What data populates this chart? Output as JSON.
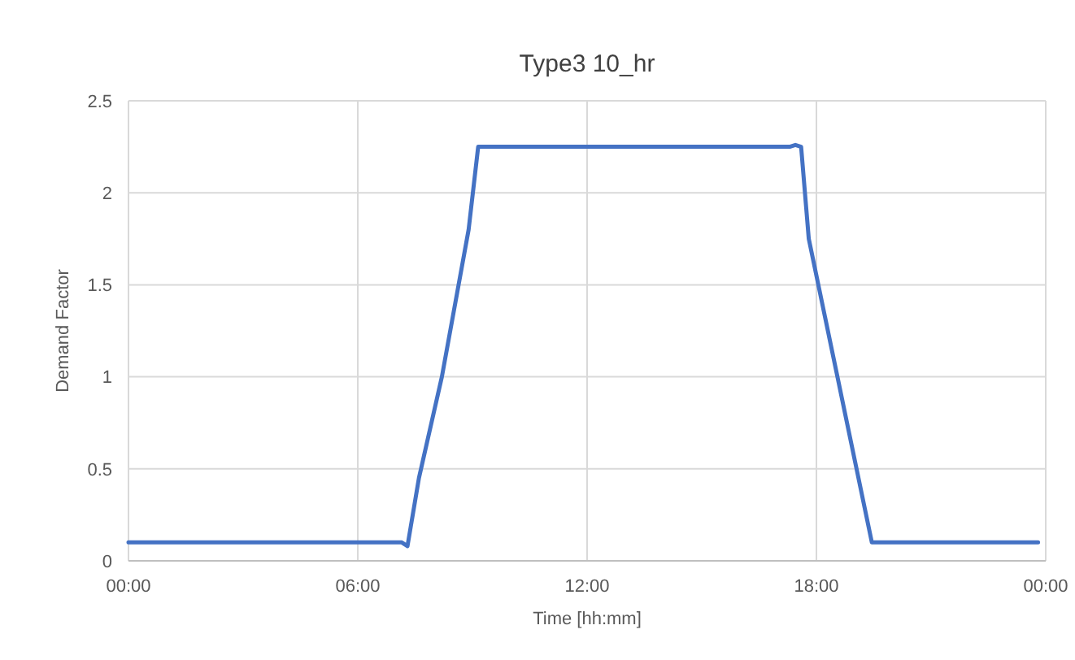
{
  "chart_data": {
    "type": "line",
    "title": "Type3 10_hr",
    "xlabel": "Time [hh:mm]",
    "ylabel": "Demand Factor",
    "x": [
      0,
      7.15,
      7.3,
      7.6,
      8.2,
      8.9,
      9.15,
      9.3,
      17.3,
      17.45,
      17.6,
      17.8,
      18.55,
      19.45,
      19.6,
      23.8
    ],
    "series": [
      {
        "color": "#4472c4",
        "values": [
          0.1,
          0.1,
          0.08,
          0.45,
          1.0,
          1.8,
          2.25,
          2.25,
          2.25,
          2.26,
          2.25,
          1.75,
          1.0,
          0.1,
          0.1,
          0.1
        ]
      }
    ],
    "xlim": [
      0,
      24
    ],
    "xticks": [
      {
        "value": 0,
        "label": "00:00"
      },
      {
        "value": 6,
        "label": "06:00"
      },
      {
        "value": 12,
        "label": "12:00"
      },
      {
        "value": 18,
        "label": "18:00"
      },
      {
        "value": 24,
        "label": "00:00"
      }
    ],
    "ylim": [
      0,
      2.5
    ],
    "yticks": [
      0,
      0.5,
      1,
      1.5,
      2,
      2.5
    ],
    "grid": true,
    "marker": "none",
    "line_style": "solid"
  }
}
